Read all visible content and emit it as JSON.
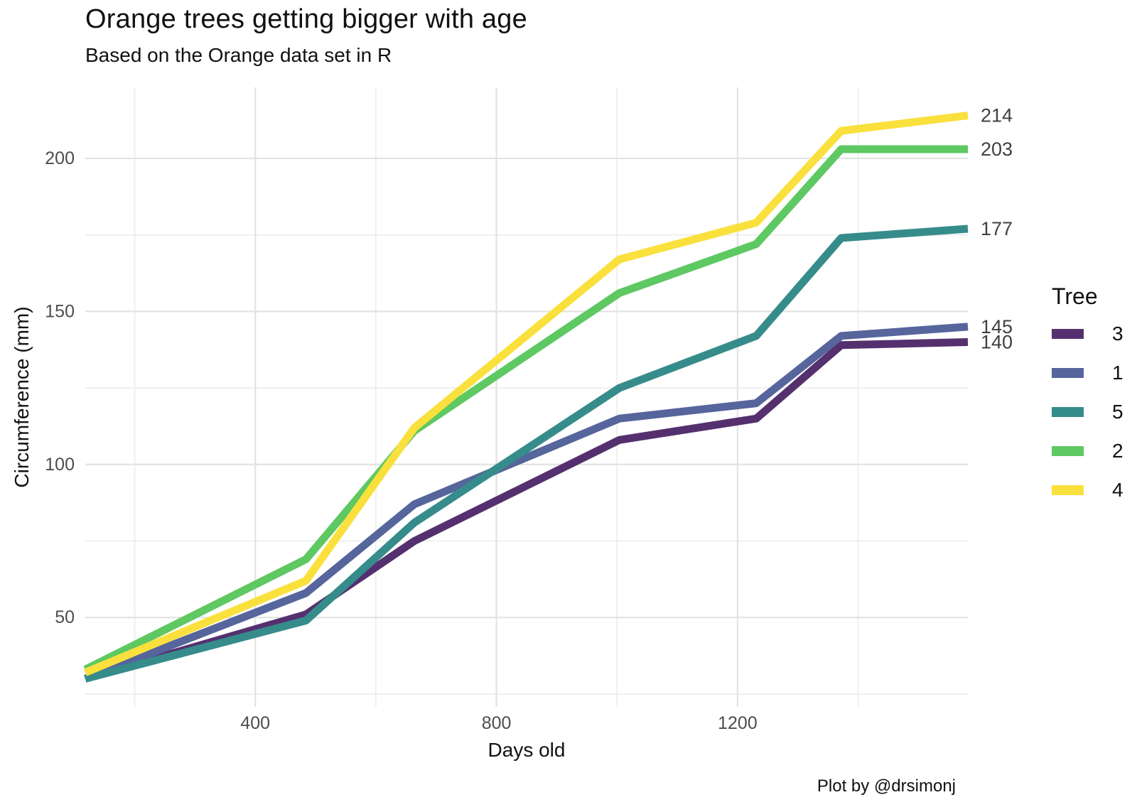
{
  "chart_data": {
    "type": "line",
    "title": "Orange trees getting bigger with age",
    "subtitle": "Based on the Orange data set in R",
    "caption": "Plot by @drsimonj",
    "xlabel": "Days old",
    "ylabel": "Circumference (mm)",
    "x": [
      118,
      484,
      664,
      1004,
      1231,
      1372,
      1582
    ],
    "series": [
      {
        "name": "3",
        "color": "#55306F",
        "values": [
          30,
          51,
          75,
          108,
          115,
          139,
          140
        ],
        "end_label": "140"
      },
      {
        "name": "1",
        "color": "#56659B",
        "values": [
          30,
          58,
          87,
          115,
          120,
          142,
          145
        ],
        "end_label": "145"
      },
      {
        "name": "5",
        "color": "#368C8B",
        "values": [
          30,
          49,
          81,
          125,
          142,
          174,
          177
        ],
        "end_label": "177"
      },
      {
        "name": "2",
        "color": "#5EC863",
        "values": [
          33,
          69,
          111,
          156,
          172,
          203,
          203
        ],
        "end_label": "203"
      },
      {
        "name": "4",
        "color": "#FAE03C",
        "values": [
          32,
          62,
          112,
          167,
          179,
          209,
          214
        ],
        "end_label": "214"
      }
    ],
    "legend": {
      "title": "Tree",
      "position": "right",
      "entries": [
        "3",
        "1",
        "5",
        "2",
        "4"
      ]
    },
    "x_ticks": [
      400,
      800,
      1200
    ],
    "x_minor_gridlines": [
      200,
      600,
      1000,
      1400
    ],
    "y_ticks": [
      50,
      100,
      150,
      200
    ],
    "y_minor_gridlines": [
      25,
      75,
      125,
      175
    ],
    "xlim": [
      118,
      1582
    ],
    "ylim": [
      20.8,
      223.2
    ],
    "grid": true,
    "colors": {
      "grid_major": "#E3E3E3",
      "grid_minor": "#ECECEC",
      "tick_text": "#4d4d4d",
      "end_label_text": "#404040"
    }
  }
}
